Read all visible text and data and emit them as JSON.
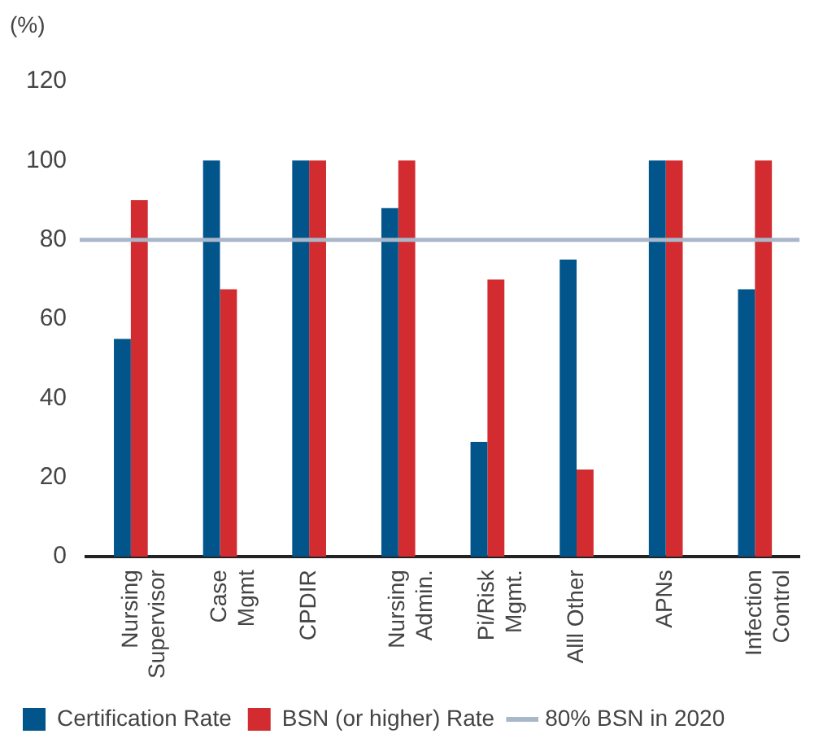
{
  "chart_data": {
    "type": "bar",
    "ylabel": "(%)",
    "categories": [
      "Nursing\nSupervisor",
      "Case\nMgmt",
      "CPDIR",
      "Nursing\nAdmin.",
      "Pi/Risk\nMgmt.",
      "Alll Other",
      "APNs",
      "Infection\nControl"
    ],
    "series": [
      {
        "name": "Certification Rate",
        "color": "#02558b",
        "values": [
          55,
          100,
          100,
          88,
          29,
          75,
          100,
          67.5
        ]
      },
      {
        "name": "BSN (or higher) Rate",
        "color": "#d22b30",
        "values": [
          90,
          67.5,
          100,
          100,
          70,
          22,
          100,
          100
        ]
      }
    ],
    "ylim": [
      0,
      120
    ],
    "yticks": [
      0,
      20,
      40,
      60,
      80,
      100,
      120
    ],
    "ref_lines": [
      {
        "axis": "y",
        "value": 80,
        "label": "80% BSN in 2020",
        "color": "#a9b7c9"
      }
    ],
    "grid": false,
    "legend": "bottom left"
  }
}
